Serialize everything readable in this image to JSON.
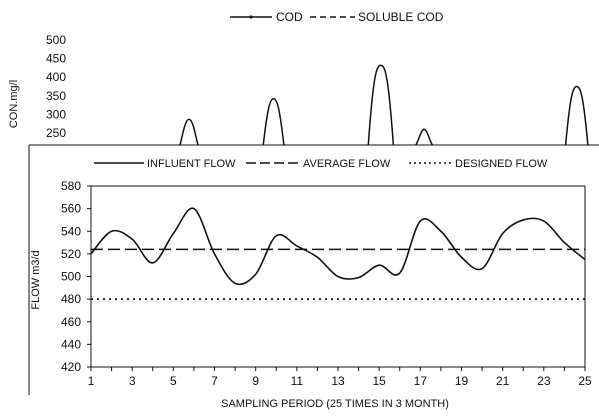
{
  "chart_data": [
    {
      "type": "line",
      "legend": [
        {
          "label": "COD",
          "style": "solid-marker"
        },
        {
          "label": "SOLUBLE COD",
          "style": "dashed"
        }
      ],
      "legend_position": "top",
      "ylabel": "CON.mg/l",
      "yticks": [
        250,
        300,
        350,
        400,
        450,
        500
      ],
      "ylim": [
        220,
        500
      ],
      "x": [
        1,
        2,
        3,
        4,
        5,
        6,
        7,
        8,
        9,
        10,
        11,
        12,
        13,
        14,
        15,
        16,
        17,
        18,
        19,
        20,
        21,
        22,
        23,
        24,
        25
      ],
      "series": [
        {
          "name": "COD",
          "style": "solid",
          "values": [
            null,
            null,
            null,
            null,
            null,
            240,
            null,
            null,
            null,
            null,
            null,
            null,
            null,
            null,
            null,
            null,
            null,
            null,
            null,
            null,
            null,
            null,
            null,
            null,
            null
          ],
          "peaks": [
            {
              "x": 5.8,
              "y": 287
            },
            {
              "x": 9.9,
              "y": 342
            },
            {
              "x": 15.1,
              "y": 432
            },
            {
              "x": 17.2,
              "y": 260
            },
            {
              "x": 24.6,
              "y": 375
            }
          ]
        }
      ],
      "grid": false
    },
    {
      "type": "line",
      "legend": [
        {
          "label": "INFLUENT FLOW",
          "style": "solid"
        },
        {
          "label": "AVERAGE FLOW",
          "style": "long-dash"
        },
        {
          "label": "DESIGNED FLOW",
          "style": "dotted"
        }
      ],
      "legend_position": "top",
      "ylabel": "FLOW m3/d",
      "xlabel": "SAMPLING PERIOD (25 TIMES IN 3 MONTH)",
      "xticks": [
        1,
        3,
        5,
        7,
        9,
        11,
        13,
        15,
        17,
        19,
        21,
        23,
        25
      ],
      "yticks": [
        420,
        440,
        460,
        480,
        500,
        520,
        540,
        560,
        580
      ],
      "xlim": [
        1,
        25
      ],
      "ylim": [
        420,
        580
      ],
      "grid": false,
      "series": [
        {
          "name": "INFLUENT FLOW",
          "style": "solid",
          "x": [
            1,
            2,
            3,
            4,
            5,
            6,
            7,
            8,
            9,
            10,
            11,
            12,
            13,
            14,
            15,
            16,
            17,
            18,
            19,
            20,
            21,
            22,
            23,
            24,
            25
          ],
          "values": [
            520,
            540,
            533,
            512,
            538,
            560,
            520,
            494,
            502,
            536,
            527,
            517,
            500,
            499,
            510,
            503,
            549,
            540,
            517,
            507,
            538,
            550,
            549,
            530,
            515
          ]
        },
        {
          "name": "AVERAGE FLOW",
          "style": "long-dash",
          "x": [
            1,
            25
          ],
          "values": [
            524,
            524
          ]
        },
        {
          "name": "DESIGNED FLOW",
          "style": "dotted",
          "x": [
            1,
            25
          ],
          "values": [
            480,
            480
          ]
        }
      ]
    }
  ]
}
